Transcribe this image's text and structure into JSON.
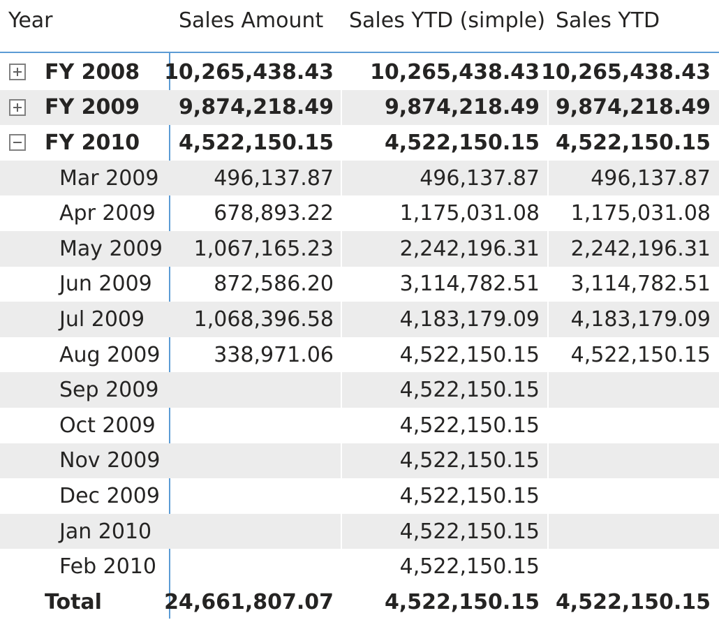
{
  "columns": {
    "year": "Year",
    "sales_amount": "Sales Amount",
    "sales_ytd_simple": "Sales YTD (simple)",
    "sales_ytd": "Sales YTD"
  },
  "years": [
    {
      "label": "FY 2008",
      "expanded": false,
      "sales_amount": "10,265,438.43",
      "sales_ytd_simple": "10,265,438.43",
      "sales_ytd": "10,265,438.43"
    },
    {
      "label": "FY 2009",
      "expanded": false,
      "sales_amount": "9,874,218.49",
      "sales_ytd_simple": "9,874,218.49",
      "sales_ytd": "9,874,218.49"
    },
    {
      "label": "FY 2010",
      "expanded": true,
      "sales_amount": "4,522,150.15",
      "sales_ytd_simple": "4,522,150.15",
      "sales_ytd": "4,522,150.15"
    }
  ],
  "months": [
    {
      "label": "Mar 2009",
      "sales_amount": "496,137.87",
      "sales_ytd_simple": "496,137.87",
      "sales_ytd": "496,137.87"
    },
    {
      "label": "Apr 2009",
      "sales_amount": "678,893.22",
      "sales_ytd_simple": "1,175,031.08",
      "sales_ytd": "1,175,031.08"
    },
    {
      "label": "May 2009",
      "sales_amount": "1,067,165.23",
      "sales_ytd_simple": "2,242,196.31",
      "sales_ytd": "2,242,196.31"
    },
    {
      "label": "Jun 2009",
      "sales_amount": "872,586.20",
      "sales_ytd_simple": "3,114,782.51",
      "sales_ytd": "3,114,782.51"
    },
    {
      "label": "Jul 2009",
      "sales_amount": "1,068,396.58",
      "sales_ytd_simple": "4,183,179.09",
      "sales_ytd": "4,183,179.09"
    },
    {
      "label": "Aug 2009",
      "sales_amount": "338,971.06",
      "sales_ytd_simple": "4,522,150.15",
      "sales_ytd": "4,522,150.15"
    },
    {
      "label": "Sep 2009",
      "sales_amount": "",
      "sales_ytd_simple": "4,522,150.15",
      "sales_ytd": ""
    },
    {
      "label": "Oct 2009",
      "sales_amount": "",
      "sales_ytd_simple": "4,522,150.15",
      "sales_ytd": ""
    },
    {
      "label": "Nov 2009",
      "sales_amount": "",
      "sales_ytd_simple": "4,522,150.15",
      "sales_ytd": ""
    },
    {
      "label": "Dec 2009",
      "sales_amount": "",
      "sales_ytd_simple": "4,522,150.15",
      "sales_ytd": ""
    },
    {
      "label": "Jan 2010",
      "sales_amount": "",
      "sales_ytd_simple": "4,522,150.15",
      "sales_ytd": ""
    },
    {
      "label": "Feb 2010",
      "sales_amount": "",
      "sales_ytd_simple": "4,522,150.15",
      "sales_ytd": ""
    }
  ],
  "total": {
    "label": "Total",
    "sales_amount": "24,661,807.07",
    "sales_ytd_simple": "4,522,150.15",
    "sales_ytd": "4,522,150.15"
  },
  "colors": {
    "accent_line": "#5b9bd5",
    "shaded_row": "#ececec",
    "text": "#252423"
  },
  "icons": {
    "collapsed": "expand-plus-icon",
    "expanded": "collapse-minus-icon"
  }
}
